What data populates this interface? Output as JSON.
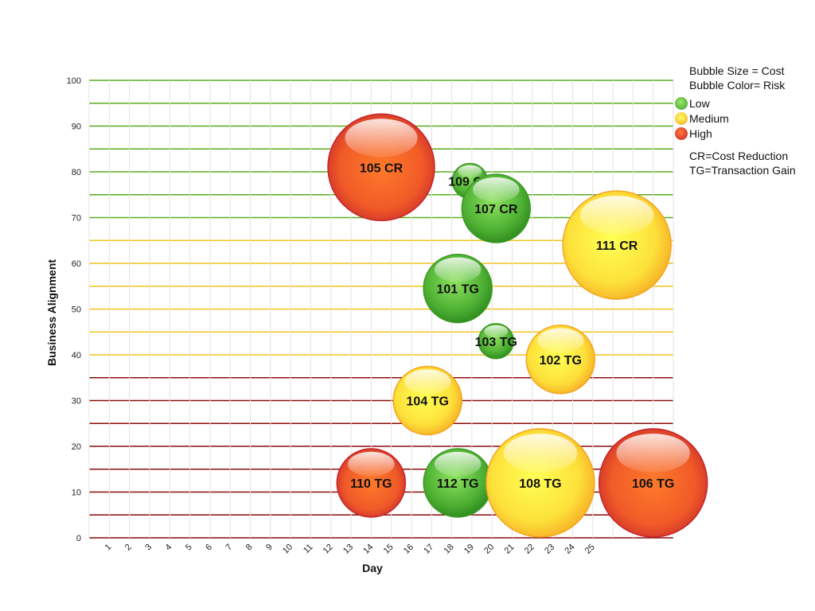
{
  "chart_data": {
    "type": "scatter",
    "title": "",
    "xlabel": "Day",
    "ylabel": "Business Alignment",
    "xlim": [
      0,
      29
    ],
    "ylim": [
      0,
      100
    ],
    "x_ticks": [
      "1",
      "2",
      "3",
      "4",
      "5",
      "6",
      "7",
      "8",
      "9",
      "10",
      "11",
      "12",
      "13",
      "14",
      "15",
      "16",
      "17",
      "18",
      "19",
      "20",
      "21",
      "22",
      "23",
      "24",
      "25"
    ],
    "y_ticks": [
      "0",
      "10",
      "20",
      "30",
      "40",
      "50",
      "60",
      "70",
      "80",
      "90",
      "100"
    ],
    "gridlines": {
      "values": [
        0,
        5,
        10,
        15,
        20,
        25,
        30,
        35,
        40,
        45,
        50,
        55,
        60,
        65,
        70,
        75,
        80,
        85,
        90,
        95,
        100
      ],
      "bands": [
        {
          "from": 0,
          "to": 35,
          "risk": "high"
        },
        {
          "from": 40,
          "to": 65,
          "risk": "medium"
        },
        {
          "from": 70,
          "to": 100,
          "risk": "low"
        }
      ]
    },
    "risk_colors": {
      "low": "#4caf32",
      "medium": "#f5c21e",
      "high": "#d8322a"
    },
    "legend": {
      "size_note": "Bubble Size = Cost",
      "color_note": "Bubble Color= Risk",
      "entries": [
        {
          "label": "Low",
          "risk": "low"
        },
        {
          "label": "Medium",
          "risk": "medium"
        },
        {
          "label": "High",
          "risk": "high"
        }
      ],
      "abbr_1": "CR=Cost Reduction",
      "abbr_2": "TG=Transaction Gain",
      "placement": "top-right"
    },
    "bubbles": [
      {
        "label": "105 CR",
        "x": 14.5,
        "y": 81,
        "size": 67,
        "risk": "high"
      },
      {
        "label": "109 CR",
        "x": 18.9,
        "y": 78,
        "size": 22,
        "risk": "low"
      },
      {
        "label": "107 CR",
        "x": 20.2,
        "y": 72,
        "size": 43,
        "risk": "low"
      },
      {
        "label": "111 CR",
        "x": 26.2,
        "y": 64,
        "size": 68,
        "risk": "medium"
      },
      {
        "label": "101 TG",
        "x": 18.3,
        "y": 54.5,
        "size": 43,
        "risk": "low"
      },
      {
        "label": "103 TG",
        "x": 20.2,
        "y": 43,
        "size": 22,
        "risk": "low"
      },
      {
        "label": "102 TG",
        "x": 23.4,
        "y": 39,
        "size": 43,
        "risk": "medium"
      },
      {
        "label": "104 TG",
        "x": 16.8,
        "y": 30,
        "size": 43,
        "risk": "medium"
      },
      {
        "label": "110 TG",
        "x": 14.0,
        "y": 12,
        "size": 43,
        "risk": "high"
      },
      {
        "label": "112 TG",
        "x": 18.3,
        "y": 12,
        "size": 43,
        "risk": "low"
      },
      {
        "label": "108 TG",
        "x": 22.4,
        "y": 12,
        "size": 68,
        "risk": "medium"
      },
      {
        "label": "106 TG",
        "x": 28.0,
        "y": 12,
        "size": 68,
        "risk": "high"
      }
    ]
  }
}
